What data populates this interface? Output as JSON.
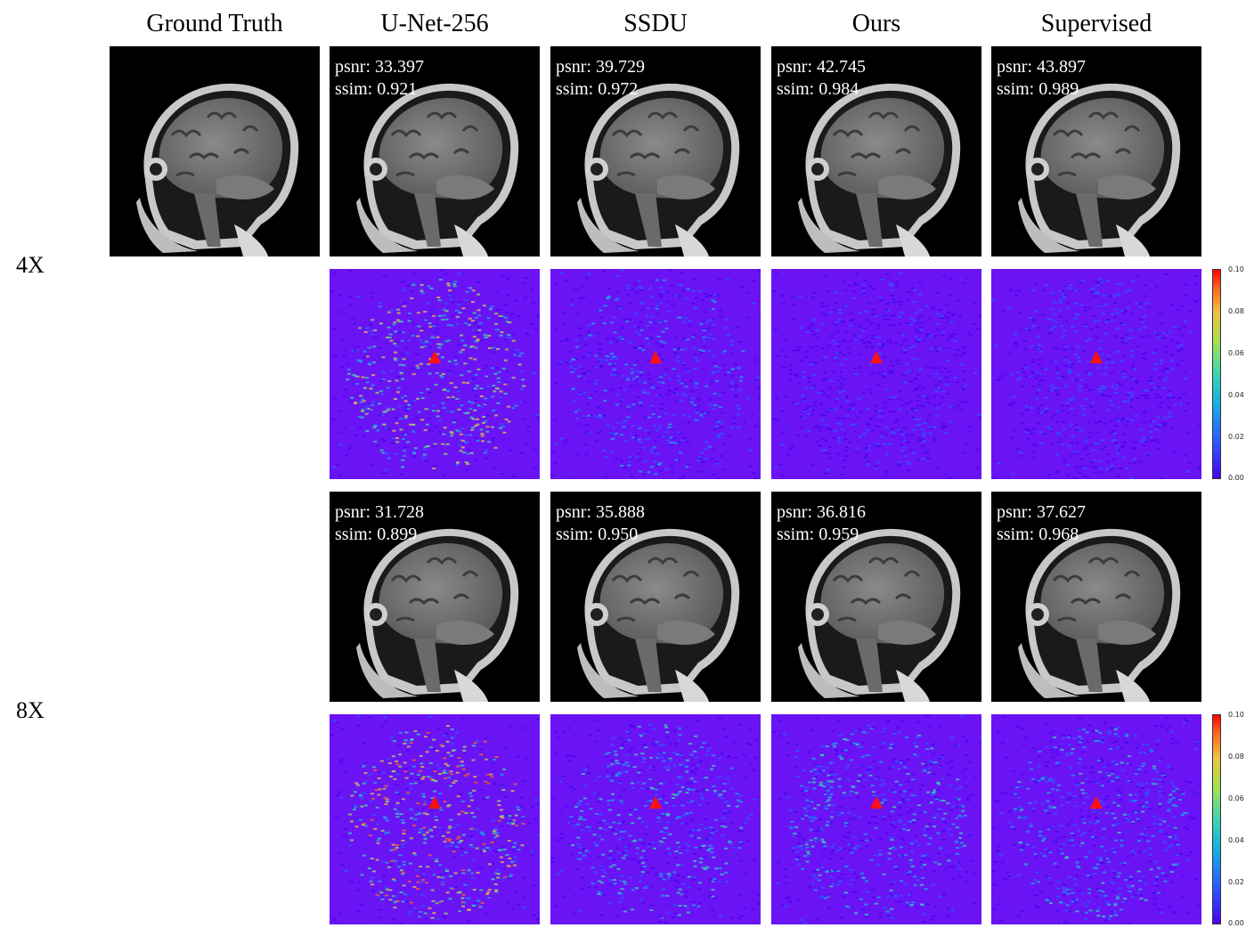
{
  "columns": [
    "Ground Truth",
    "U-Net-256",
    "SSDU",
    "Ours",
    "Supervised"
  ],
  "rows": [
    {
      "label": "4X",
      "metrics": [
        {
          "psnr": "psnr: 33.397",
          "ssim": "ssim: 0.921"
        },
        {
          "psnr": "psnr: 39.729",
          "ssim": "ssim: 0.972"
        },
        {
          "psnr": "psnr: 42.745",
          "ssim": "ssim: 0.984"
        },
        {
          "psnr": "psnr: 43.897",
          "ssim": "ssim: 0.989"
        }
      ]
    },
    {
      "label": "8X",
      "metrics": [
        {
          "psnr": "psnr: 31.728",
          "ssim": "ssim: 0.899"
        },
        {
          "psnr": "psnr: 35.888",
          "ssim": "ssim: 0.950"
        },
        {
          "psnr": "psnr: 36.816",
          "ssim": "ssim: 0.959"
        },
        {
          "psnr": "psnr: 37.627",
          "ssim": "ssim: 0.968"
        }
      ]
    }
  ],
  "colorbar": {
    "ticks": [
      "0.10",
      "0.08",
      "0.06",
      "0.04",
      "0.02",
      "0.00"
    ],
    "colors": [
      "#4a00f0",
      "#2a5cff",
      "#18a8e8",
      "#3ad6b0",
      "#a8e050",
      "#f0c040",
      "#ff6020",
      "#ff0000"
    ]
  },
  "error_map": {
    "background": "#6a14f5",
    "marker_color": "#ff1010"
  }
}
